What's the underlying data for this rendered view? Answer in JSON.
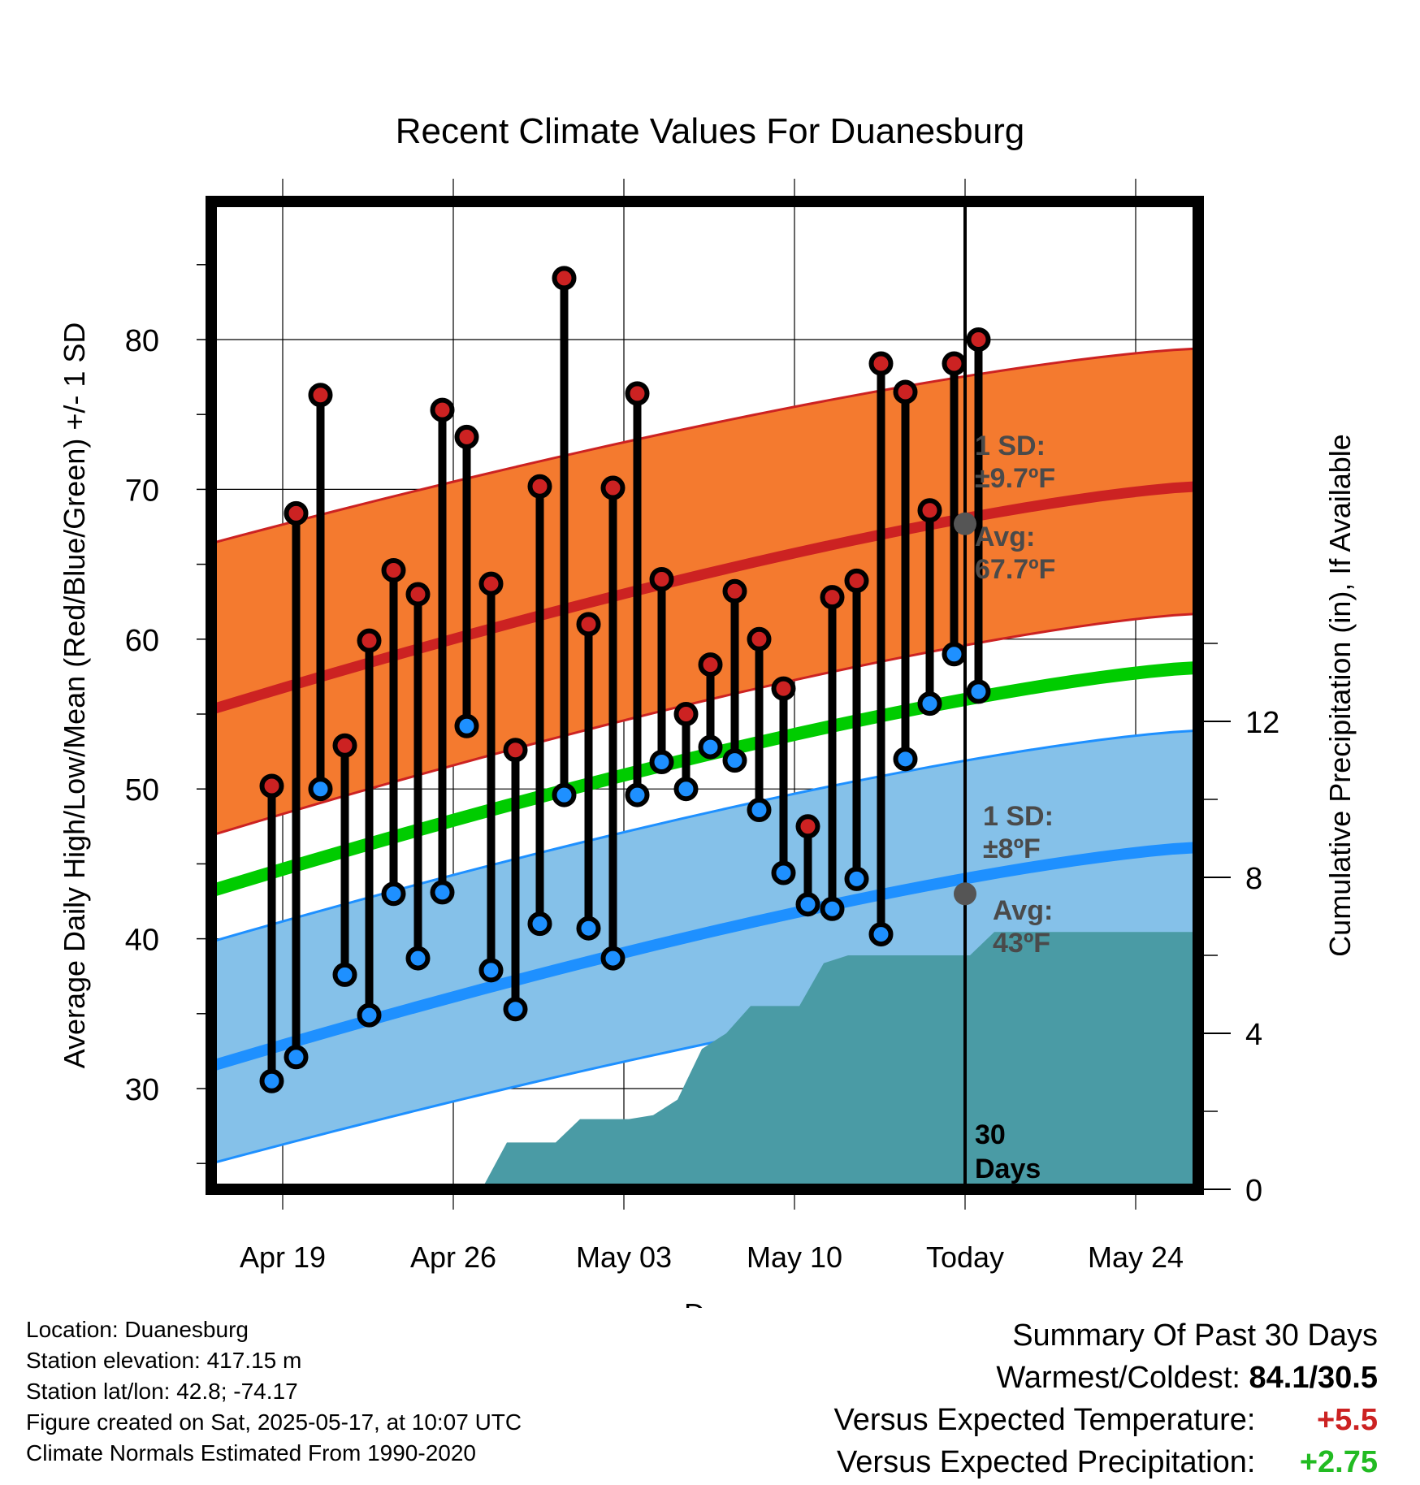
{
  "chart_data": {
    "type": "line",
    "title": "Recent Climate Values For Duanesburg",
    "xlabel": "Day",
    "ylabel": "Average Daily High/Low/Mean (Red/Blue/Green) +/- 1 SD",
    "ylabel_right": "Cumulative Precipitation (in), If Available",
    "y_ticks": [
      30,
      40,
      50,
      60,
      70,
      80
    ],
    "y_right_ticks": [
      0,
      4,
      8,
      12
    ],
    "x_ticks": [
      "Apr 19",
      "Apr 26",
      "May 03",
      "May 10",
      "Today",
      "May 24"
    ],
    "today_label_days": "30",
    "today_label_text": "Days",
    "days": [
      "Apr 18",
      "Apr 19",
      "Apr 20",
      "Apr 21",
      "Apr 22",
      "Apr 23",
      "Apr 24",
      "Apr 25",
      "Apr 26",
      "Apr 27",
      "Apr 28",
      "Apr 29",
      "Apr 30",
      "May 01",
      "May 02",
      "May 03",
      "May 04",
      "May 05",
      "May 06",
      "May 07",
      "May 08",
      "May 09",
      "May 10",
      "May 11",
      "May 12",
      "May 13",
      "May 14",
      "May 15",
      "May 16"
    ],
    "highs": [
      50.2,
      68.4,
      76.3,
      52.9,
      59.9,
      64.6,
      63.0,
      75.3,
      73.5,
      63.7,
      52.6,
      70.2,
      84.1,
      61.0,
      70.1,
      76.4,
      64.0,
      55.0,
      58.3,
      63.2,
      60.0,
      56.7,
      47.5,
      62.8,
      63.9,
      78.4,
      76.5,
      68.6,
      78.4
    ],
    "lows": [
      30.5,
      32.1,
      50.0,
      37.6,
      34.9,
      43.0,
      38.7,
      43.1,
      54.2,
      37.9,
      35.3,
      41.0,
      49.6,
      40.7,
      38.7,
      49.6,
      51.8,
      50.0,
      52.8,
      51.9,
      48.6,
      44.4,
      42.3,
      42.0,
      44.0,
      40.3,
      52.0,
      55.7,
      59.0
    ],
    "highs_extra": [
      {
        "day": "May 17",
        "high": 80.0,
        "low": 56.5
      }
    ],
    "normal_high": {
      "start": 55.3,
      "today": 67.7,
      "end": 70.2
    },
    "normal_high_band": {
      "lower_start": 46.9,
      "lower_end": 61.7,
      "upper_start": 66.4,
      "upper_end": 79.4
    },
    "normal_mean": {
      "start": 43.2,
      "end": 58.1
    },
    "normal_low": {
      "start": 31.5,
      "today": 43.0,
      "end": 46.1
    },
    "normal_low_band": {
      "lower_start": 25.0,
      "lower_end": 38.1,
      "upper_start": 39.8,
      "upper_end": 53.9
    },
    "precip_cumulative": [
      0,
      0,
      0,
      0,
      0,
      0.04,
      0.04,
      0.04,
      0.04,
      1.2,
      1.2,
      1.2,
      1.8,
      1.8,
      1.8,
      1.9,
      2.3,
      3.6,
      4.0,
      4.7,
      4.7,
      4.7,
      5.8,
      6.0,
      6.0,
      6.0,
      6.0,
      6.0,
      6.0,
      6.6
    ],
    "high_sd_label": "1 SD:",
    "high_sd_value": "±9.7ºF",
    "high_avg_label": "Avg:",
    "high_avg_value": "67.7ºF",
    "low_sd_label": "1 SD:",
    "low_sd_value": "±8ºF",
    "low_avg_label": "Avg:",
    "low_avg_value": "43ºF",
    "colors": {
      "high_band": "#f47a2f",
      "high_line": "#cc2222",
      "mean_line": "#00cc00",
      "low_band": "#85c1e9",
      "low_line": "#1e90ff",
      "precip": "#4a9ba5",
      "high_dot": "#cc2222",
      "low_dot": "#1e90ff"
    }
  },
  "footer": {
    "location": "Location: Duanesburg",
    "elevation": "Station elevation: 417.15 m",
    "latlon": "Station lat/lon: 42.8; -74.17",
    "created": "Figure created on Sat, 2025-05-17, at 10:07 UTC",
    "normals": "Climate Normals Estimated From 1990-2020"
  },
  "summary": {
    "title": "Summary Of Past 30 Days",
    "warm_cold_label": "Warmest/Coldest:",
    "warm_cold_value": "84.1/30.5",
    "temp_label": "Versus Expected Temperature:",
    "temp_value": "+5.5",
    "precip_label": "Versus Expected Precipitation:",
    "precip_value": "+2.75",
    "temp_color": "#cc2222",
    "precip_color": "#22bb22"
  }
}
